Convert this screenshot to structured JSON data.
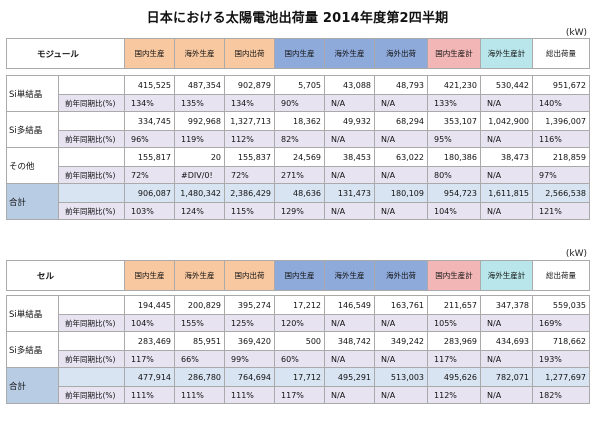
{
  "title": "日本における太陽電池出荷量 2014年度第2四半期",
  "unit": "(kW)",
  "columns": [
    "国内生産",
    "海外生産",
    "国内出荷",
    "国内生産",
    "海外生産",
    "海外出荷",
    "国内生産計",
    "海外生産計",
    "総出荷量"
  ],
  "tables": [
    {
      "label": "モジュール",
      "rows": [
        {
          "name": "Si単結晶",
          "values": [
            "415,525",
            "487,354",
            "902,879",
            "5,705",
            "43,088",
            "48,793",
            "421,230",
            "530,442",
            "951,672"
          ],
          "yoy_label": "前年同期比(%)",
          "yoy": [
            "134%",
            "135%",
            "134%",
            "90%",
            "N/A",
            "N/A",
            "133%",
            "N/A",
            "140%"
          ]
        },
        {
          "name": "Si多結晶",
          "values": [
            "334,745",
            "992,968",
            "1,327,713",
            "18,362",
            "49,932",
            "68,294",
            "353,107",
            "1,042,900",
            "1,396,007"
          ],
          "yoy_label": "前年同期比(%)",
          "yoy": [
            "96%",
            "119%",
            "112%",
            "82%",
            "N/A",
            "N/A",
            "95%",
            "N/A",
            "116%"
          ]
        },
        {
          "name": "その他",
          "values": [
            "155,817",
            "20",
            "155,837",
            "24,569",
            "38,453",
            "63,022",
            "180,386",
            "38,473",
            "218,859"
          ],
          "yoy_label": "前年同期比(%)",
          "yoy": [
            "72%",
            "#DIV/0!",
            "72%",
            "271%",
            "N/A",
            "N/A",
            "80%",
            "N/A",
            "97%"
          ]
        }
      ],
      "total": {
        "name": "合計",
        "values": [
          "906,087",
          "1,480,342",
          "2,386,429",
          "48,636",
          "131,473",
          "180,109",
          "954,723",
          "1,611,815",
          "2,566,538"
        ],
        "yoy_label": "前年同期比(%)",
        "yoy": [
          "103%",
          "124%",
          "115%",
          "129%",
          "N/A",
          "N/A",
          "104%",
          "N/A",
          "121%"
        ]
      }
    },
    {
      "label": "セル",
      "rows": [
        {
          "name": "Si単結晶",
          "values": [
            "194,445",
            "200,829",
            "395,274",
            "17,212",
            "146,549",
            "163,761",
            "211,657",
            "347,378",
            "559,035"
          ],
          "yoy_label": "前年同期比(%)",
          "yoy": [
            "104%",
            "155%",
            "125%",
            "120%",
            "N/A",
            "N/A",
            "105%",
            "N/A",
            "169%"
          ]
        },
        {
          "name": "Si多結晶",
          "values": [
            "283,469",
            "85,951",
            "369,420",
            "500",
            "348,742",
            "349,242",
            "283,969",
            "434,693",
            "718,662"
          ],
          "yoy_label": "前年同期比(%)",
          "yoy": [
            "117%",
            "66%",
            "99%",
            "60%",
            "N/A",
            "N/A",
            "117%",
            "N/A",
            "193%"
          ]
        }
      ],
      "total": {
        "name": "合計",
        "values": [
          "477,914",
          "286,780",
          "764,694",
          "17,712",
          "495,291",
          "513,003",
          "495,626",
          "782,071",
          "1,277,697"
        ],
        "yoy_label": "前年同期比(%)",
        "yoy": [
          "111%",
          "111%",
          "111%",
          "117%",
          "N/A",
          "N/A",
          "112%",
          "N/A",
          "182%"
        ]
      }
    }
  ]
}
